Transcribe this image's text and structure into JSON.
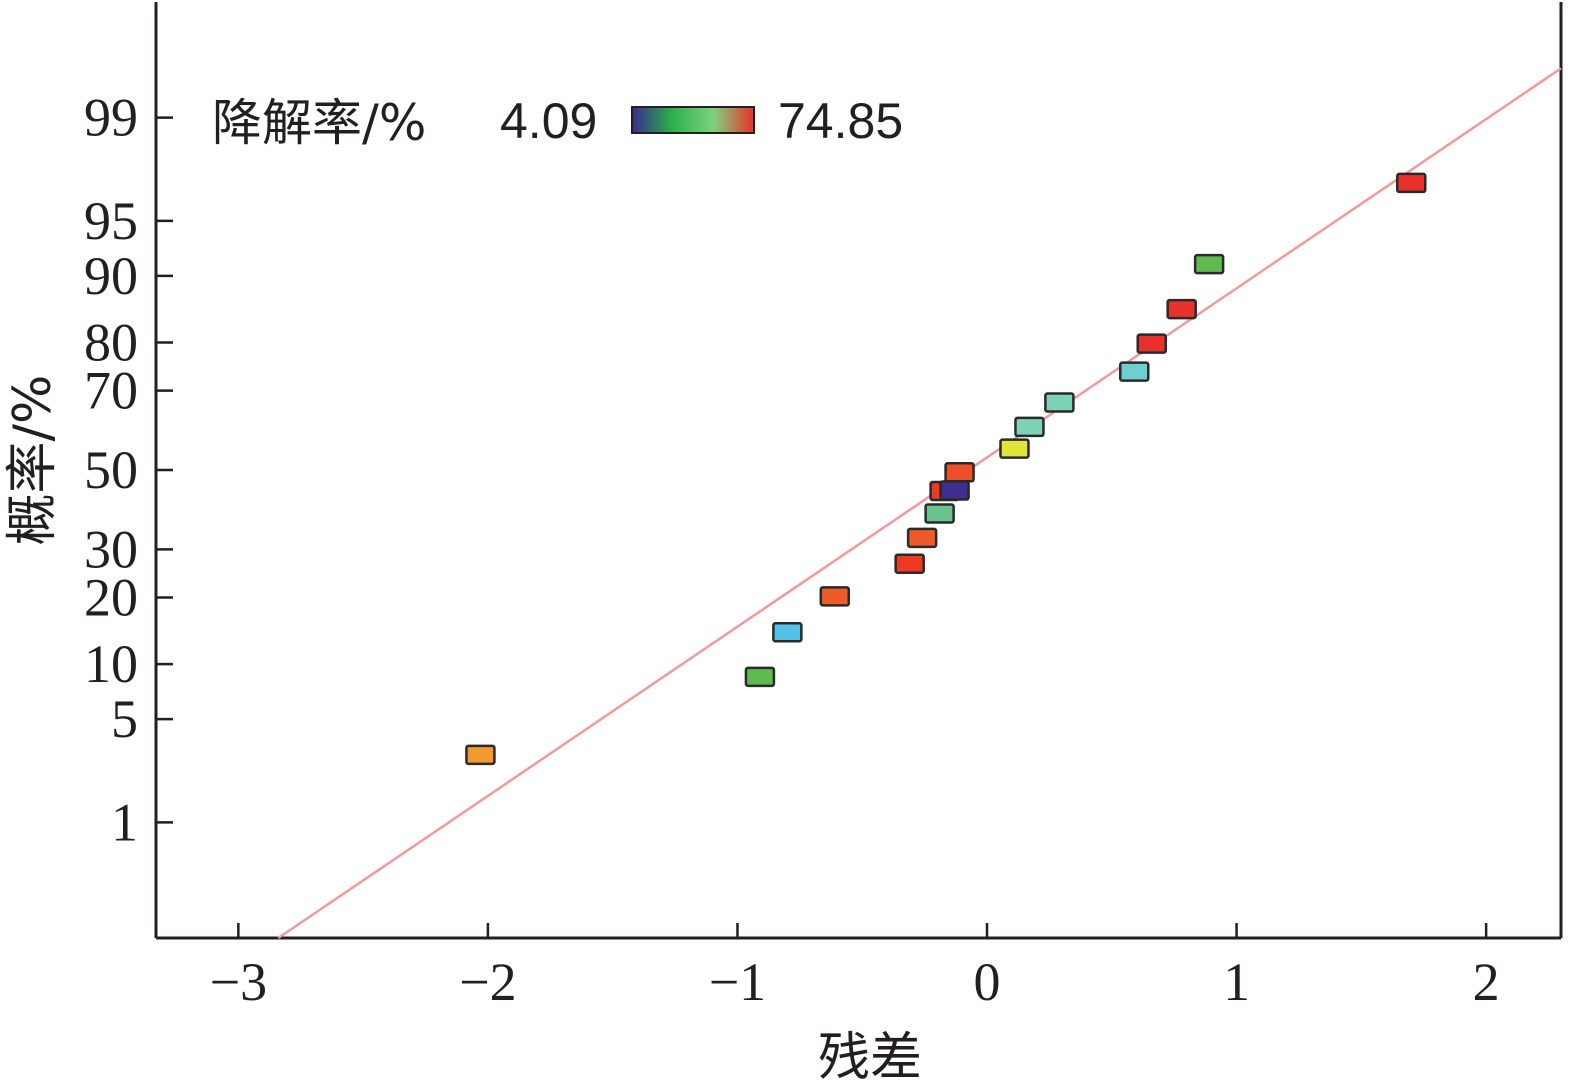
{
  "chart_data": {
    "type": "scatter",
    "title": "",
    "xlabel": "残差",
    "ylabel": "概率/%",
    "xlim": [
      -3.33,
      2.3
    ],
    "x_ticks": [
      -3,
      -2,
      -1,
      0,
      1,
      2
    ],
    "x_tick_labels": [
      "−3",
      "−2",
      "−1",
      "0",
      "1",
      "2"
    ],
    "y_scale": "normal-probability",
    "ylim": [
      0.1,
      99.9
    ],
    "y_ticks": [
      1,
      5,
      10,
      20,
      30,
      50,
      70,
      80,
      90,
      95,
      99
    ],
    "y_tick_labels": [
      "1",
      "5",
      "10",
      "20",
      "30",
      "50",
      "70",
      "80",
      "90",
      "95",
      "99"
    ],
    "grid": false,
    "legend": {
      "label": "降解率/%",
      "min_label": "4.09",
      "max_label": "74.85",
      "placement": "top-left",
      "gradient": [
        "#3a2a8c",
        "#2bb24c",
        "#7fd17f",
        "#e8312a"
      ]
    },
    "line": {
      "color": "#f29a9a",
      "points": [
        {
          "x": -2.84,
          "y": 0.1
        },
        {
          "x": 2.3,
          "y": 99.6
        }
      ]
    },
    "points": [
      {
        "x": -2.03,
        "y": 3.0,
        "color": "#f39a2e"
      },
      {
        "x": -0.91,
        "y": 8.6,
        "color": "#5fba4f"
      },
      {
        "x": -0.8,
        "y": 14.2,
        "color": "#52c2e8"
      },
      {
        "x": -0.61,
        "y": 20.2,
        "color": "#ef5a2a"
      },
      {
        "x": -0.31,
        "y": 26.8,
        "color": "#ec3a25"
      },
      {
        "x": -0.26,
        "y": 32.7,
        "color": "#ef5a2a"
      },
      {
        "x": -0.19,
        "y": 38.7,
        "color": "#6ac48e"
      },
      {
        "x": -0.17,
        "y": 44.5,
        "color": "#ec3a25"
      },
      {
        "x": -0.13,
        "y": 44.6,
        "color": "#3f2e8e"
      },
      {
        "x": -0.11,
        "y": 49.4,
        "color": "#ee4e28"
      },
      {
        "x": 0.11,
        "y": 55.6,
        "color": "#dfe43a"
      },
      {
        "x": 0.17,
        "y": 61.2,
        "color": "#7dd3b8"
      },
      {
        "x": 0.29,
        "y": 67.2,
        "color": "#7dd3b8"
      },
      {
        "x": 0.59,
        "y": 74.2,
        "color": "#6fcfcf"
      },
      {
        "x": 0.66,
        "y": 79.8,
        "color": "#e8312a"
      },
      {
        "x": 0.78,
        "y": 85.6,
        "color": "#e8312a"
      },
      {
        "x": 0.89,
        "y": 91.3,
        "color": "#5fba4f"
      },
      {
        "x": 1.7,
        "y": 97.1,
        "color": "#e8312a"
      }
    ]
  }
}
